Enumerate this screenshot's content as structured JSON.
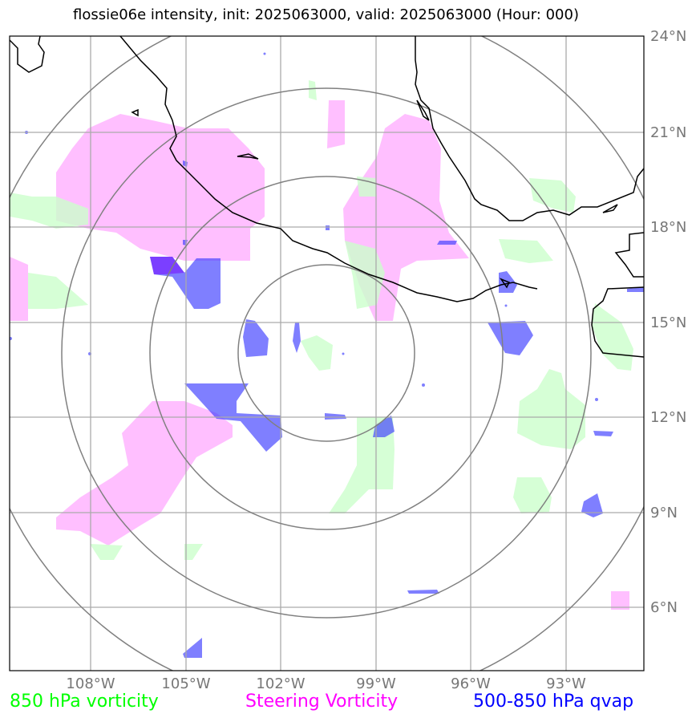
{
  "title": "flossie06e intensity, init: 2025063000, valid: 2025063000 (Hour: 000)",
  "axes": {
    "lat_labels": [
      "24°N",
      "21°N",
      "18°N",
      "15°N",
      "12°N",
      "9°N",
      "6°N"
    ],
    "lon_labels": [
      "108°W",
      "105°W",
      "102°W",
      "99°W",
      "96°W",
      "93°W"
    ]
  },
  "legend": {
    "vorticity_850": {
      "label": "850 hPa vorticity",
      "color": "#00ff00"
    },
    "steering": {
      "label": "Steering Vorticity",
      "color": "#ff00ff"
    },
    "qvap": {
      "label": "500-850 hPa qvap",
      "color": "#0000ff"
    }
  },
  "colors": {
    "fill_850": "#ccffcc",
    "fill_steering": "#ffaaff",
    "fill_qvap": "#3a3aff",
    "grid": "#aaaaaa",
    "rings": "#808080",
    "coast": "#000000"
  }
}
